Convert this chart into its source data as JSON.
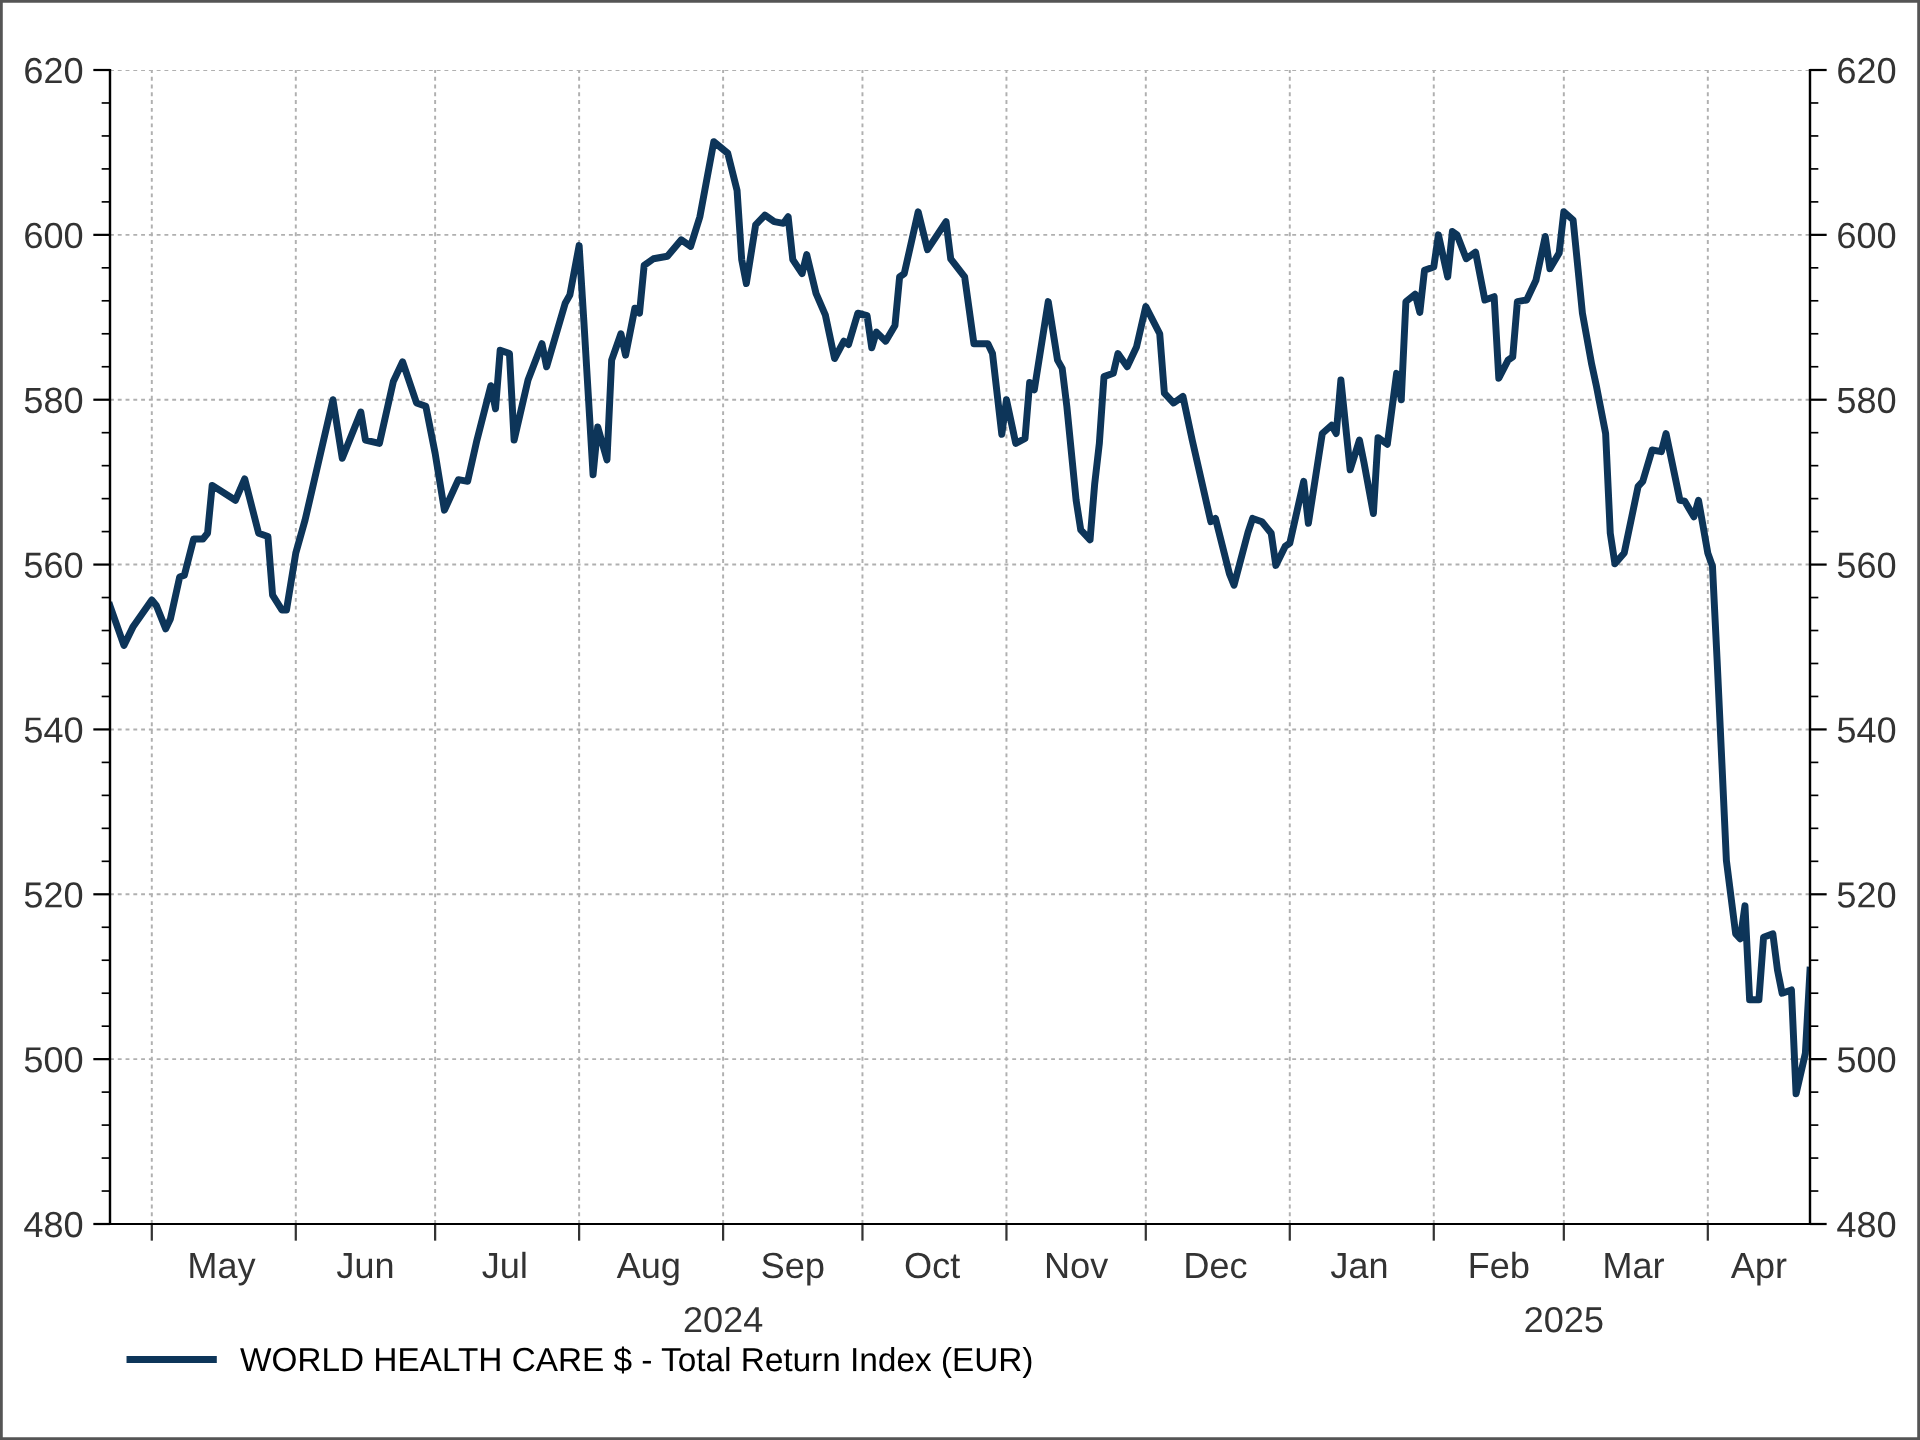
{
  "chart_data": {
    "type": "line",
    "xlim": [
      "2024-04-22",
      "2025-04-23"
    ],
    "xticks": [
      {
        "value": "2024-05-01",
        "label": null
      },
      {
        "value": "2024-05-16",
        "label": "May"
      },
      {
        "value": "2024-06-01",
        "label": null
      },
      {
        "value": "2024-06-16",
        "label": "Jun"
      },
      {
        "value": "2024-07-01",
        "label": null
      },
      {
        "value": "2024-07-16",
        "label": "Jul"
      },
      {
        "value": "2024-08-01",
        "label": null
      },
      {
        "value": "2024-08-16",
        "label": "Aug"
      },
      {
        "value": "2024-09-01",
        "label": null
      },
      {
        "value": "2024-09-16",
        "label": "Sep"
      },
      {
        "value": "2024-10-01",
        "label": null
      },
      {
        "value": "2024-10-16",
        "label": "Oct"
      },
      {
        "value": "2024-11-01",
        "label": null
      },
      {
        "value": "2024-11-16",
        "label": "Nov"
      },
      {
        "value": "2024-12-01",
        "label": null
      },
      {
        "value": "2024-12-16",
        "label": "Dec"
      },
      {
        "value": "2025-01-01",
        "label": null
      },
      {
        "value": "2025-01-16",
        "label": "Jan"
      },
      {
        "value": "2025-02-01",
        "label": null
      },
      {
        "value": "2025-02-15",
        "label": "Feb"
      },
      {
        "value": "2025-03-01",
        "label": null
      },
      {
        "value": "2025-03-16",
        "label": "Mar"
      },
      {
        "value": "2025-04-01",
        "label": null
      },
      {
        "value": "2025-04-12",
        "label": "Apr"
      }
    ],
    "x2lim": [
      "2024-04-22",
      "2025-04-23"
    ],
    "x2ticks": [
      {
        "value": "2024-09-01",
        "label": "2024"
      },
      {
        "value": "2025-03-01",
        "label": "2025"
      }
    ],
    "ylim": [
      480,
      620
    ],
    "yticks": [
      480,
      {
        "value": 484,
        "label": null
      },
      {
        "value": 488,
        "label": null
      },
      {
        "value": 492,
        "label": null
      },
      {
        "value": 496,
        "label": null
      },
      500,
      {
        "value": 504,
        "label": null
      },
      {
        "value": 508,
        "label": null
      },
      {
        "value": 512,
        "label": null
      },
      {
        "value": 516,
        "label": null
      },
      520,
      {
        "value": 524,
        "label": null
      },
      {
        "value": 528,
        "label": null
      },
      {
        "value": 532,
        "label": null
      },
      {
        "value": 536,
        "label": null
      },
      540,
      {
        "value": 544,
        "label": null
      },
      {
        "value": 548,
        "label": null
      },
      {
        "value": 552,
        "label": null
      },
      {
        "value": 556,
        "label": null
      },
      560,
      {
        "value": 564,
        "label": null
      },
      {
        "value": 568,
        "label": null
      },
      {
        "value": 572,
        "label": null
      },
      {
        "value": 576,
        "label": null
      },
      580,
      {
        "value": 584,
        "label": null
      },
      {
        "value": 588,
        "label": null
      },
      {
        "value": 592,
        "label": null
      },
      {
        "value": 596,
        "label": null
      },
      600,
      {
        "value": 604,
        "label": null
      },
      {
        "value": 608,
        "label": null
      },
      {
        "value": 612,
        "label": null
      },
      {
        "value": 616,
        "label": null
      },
      620
    ],
    "y2lim": [
      480,
      620
    ],
    "y2ticks": [
      480,
      {
        "value": 484,
        "label": null
      },
      {
        "value": 488,
        "label": null
      },
      {
        "value": 492,
        "label": null
      },
      {
        "value": 496,
        "label": null
      },
      500,
      {
        "value": 504,
        "label": null
      },
      {
        "value": 508,
        "label": null
      },
      {
        "value": 512,
        "label": null
      },
      {
        "value": 516,
        "label": null
      },
      520,
      {
        "value": 524,
        "label": null
      },
      {
        "value": 528,
        "label": null
      },
      {
        "value": 532,
        "label": null
      },
      {
        "value": 536,
        "label": null
      },
      540,
      {
        "value": 544,
        "label": null
      },
      {
        "value": 548,
        "label": null
      },
      {
        "value": 552,
        "label": null
      },
      {
        "value": 556,
        "label": null
      },
      560,
      {
        "value": 564,
        "label": null
      },
      {
        "value": 568,
        "label": null
      },
      {
        "value": 572,
        "label": null
      },
      {
        "value": 576,
        "label": null
      },
      580,
      {
        "value": 584,
        "label": null
      },
      {
        "value": 588,
        "label": null
      },
      {
        "value": 592,
        "label": null
      },
      {
        "value": 596,
        "label": null
      },
      600,
      {
        "value": 604,
        "label": null
      },
      {
        "value": 608,
        "label": null
      },
      {
        "value": 612,
        "label": null
      },
      {
        "value": 616,
        "label": null
      },
      620
    ],
    "grid": true,
    "legend": "bottom left",
    "line_style": "solid",
    "marker": "none",
    "series": [
      {
        "name": "WORLD HEALTH CARE $ - Total Return Index (EUR)",
        "color": "#0d3559",
        "x": [
          "2024-04-22",
          "2024-04-25",
          "2024-04-27",
          "2024-05-01",
          "2024-05-02",
          "2024-05-04",
          "2024-05-05",
          "2024-05-07",
          "2024-05-08",
          "2024-05-10",
          "2024-05-12",
          "2024-05-13",
          "2024-05-14",
          "2024-05-19",
          "2024-05-21",
          "2024-05-24",
          "2024-05-26",
          "2024-05-27",
          "2024-05-29",
          "2024-05-30",
          "2024-06-01",
          "2024-06-03",
          "2024-06-09",
          "2024-06-11",
          "2024-06-15",
          "2024-06-16",
          "2024-06-19",
          "2024-06-22",
          "2024-06-24",
          "2024-06-27",
          "2024-06-29",
          "2024-07-01",
          "2024-07-03",
          "2024-07-06",
          "2024-07-08",
          "2024-07-10",
          "2024-07-13",
          "2024-07-14",
          "2024-07-15",
          "2024-07-17",
          "2024-07-18",
          "2024-07-21",
          "2024-07-24",
          "2024-07-25",
          "2024-07-29",
          "2024-07-30",
          "2024-08-01",
          "2024-08-02",
          "2024-08-04",
          "2024-08-05",
          "2024-08-07",
          "2024-08-08",
          "2024-08-10",
          "2024-08-11",
          "2024-08-13",
          "2024-08-14",
          "2024-08-15",
          "2024-08-17",
          "2024-08-20",
          "2024-08-23",
          "2024-08-25",
          "2024-08-27",
          "2024-08-30",
          "2024-09-02",
          "2024-09-04",
          "2024-09-05",
          "2024-09-06",
          "2024-09-08",
          "2024-09-10",
          "2024-09-12",
          "2024-09-14",
          "2024-09-15",
          "2024-09-16",
          "2024-09-18",
          "2024-09-19",
          "2024-09-21",
          "2024-09-23",
          "2024-09-25",
          "2024-09-27",
          "2024-09-28",
          "2024-09-30",
          "2024-10-02",
          "2024-10-03",
          "2024-10-04",
          "2024-10-06",
          "2024-10-08",
          "2024-10-09",
          "2024-10-10",
          "2024-10-13",
          "2024-10-15",
          "2024-10-19",
          "2024-10-20",
          "2024-10-23",
          "2024-10-25",
          "2024-10-28",
          "2024-10-29",
          "2024-10-31",
          "2024-11-01",
          "2024-11-03",
          "2024-11-05",
          "2024-11-06",
          "2024-11-07",
          "2024-11-10",
          "2024-11-12",
          "2024-11-13",
          "2024-11-14",
          "2024-11-16",
          "2024-11-17",
          "2024-11-19",
          "2024-11-20",
          "2024-11-21",
          "2024-11-22",
          "2024-11-24",
          "2024-11-25",
          "2024-11-27",
          "2024-11-29",
          "2024-12-01",
          "2024-12-04",
          "2024-12-05",
          "2024-12-07",
          "2024-12-09",
          "2024-12-11",
          "2024-12-15",
          "2024-12-16",
          "2024-12-19",
          "2024-12-20",
          "2024-12-23",
          "2024-12-24",
          "2024-12-26",
          "2024-12-28",
          "2024-12-29",
          "2024-12-31",
          "2025-01-01",
          "2025-01-04",
          "2025-01-05",
          "2025-01-08",
          "2025-01-10",
          "2025-01-11",
          "2025-01-12",
          "2025-01-14",
          "2025-01-16",
          "2025-01-17",
          "2025-01-19",
          "2025-01-20",
          "2025-01-22",
          "2025-01-24",
          "2025-01-25",
          "2025-01-26",
          "2025-01-28",
          "2025-01-29",
          "2025-01-30",
          "2025-02-01",
          "2025-02-02",
          "2025-02-04",
          "2025-02-05",
          "2025-02-06",
          "2025-02-08",
          "2025-02-10",
          "2025-02-12",
          "2025-02-14",
          "2025-02-15",
          "2025-02-17",
          "2025-02-18",
          "2025-02-19",
          "2025-02-21",
          "2025-02-23",
          "2025-02-25",
          "2025-02-26",
          "2025-02-28",
          "2025-03-01",
          "2025-03-03",
          "2025-03-05",
          "2025-03-07",
          "2025-03-08",
          "2025-03-10",
          "2025-03-11",
          "2025-03-12",
          "2025-03-14",
          "2025-03-17",
          "2025-03-18",
          "2025-03-20",
          "2025-03-22",
          "2025-03-23",
          "2025-03-26",
          "2025-03-27",
          "2025-03-29",
          "2025-03-30",
          "2025-04-01",
          "2025-04-02",
          "2025-04-03",
          "2025-04-04",
          "2025-04-05",
          "2025-04-07",
          "2025-04-08",
          "2025-04-09",
          "2025-04-10",
          "2025-04-12",
          "2025-04-13",
          "2025-04-15",
          "2025-04-16",
          "2025-04-17",
          "2025-04-19",
          "2025-04-20",
          "2025-04-22",
          "2025-04-23"
        ],
        "values": [
          555.0,
          550.2,
          552.5,
          555.7,
          555.0,
          552.2,
          553.4,
          558.5,
          558.7,
          563.1,
          563.1,
          563.8,
          569.6,
          567.8,
          570.4,
          563.8,
          563.4,
          556.3,
          554.5,
          554.5,
          561.4,
          565.4,
          580.0,
          572.9,
          578.5,
          575.1,
          574.7,
          582.2,
          584.6,
          579.6,
          579.2,
          573.5,
          566.6,
          570.3,
          570.1,
          575.1,
          581.7,
          578.9,
          586.0,
          585.6,
          575.1,
          582.4,
          586.8,
          584.0,
          591.7,
          592.7,
          598.7,
          589.7,
          570.9,
          576.7,
          572.7,
          584.8,
          588.0,
          585.4,
          591.1,
          590.5,
          596.3,
          597.1,
          597.4,
          599.4,
          598.6,
          602.2,
          611.3,
          609.9,
          605.4,
          597.0,
          594.1,
          601.2,
          602.4,
          601.6,
          601.4,
          602.2,
          597.0,
          595.3,
          597.6,
          592.9,
          590.3,
          585.0,
          587.1,
          586.7,
          590.5,
          590.2,
          586.3,
          588.2,
          587.1,
          589.0,
          594.9,
          595.3,
          602.8,
          598.2,
          601.6,
          597.1,
          594.9,
          586.8,
          586.8,
          585.6,
          575.8,
          580.0,
          574.7,
          575.3,
          582.1,
          581.2,
          591.9,
          584.8,
          583.8,
          579.2,
          567.8,
          564.2,
          563.0,
          569.8,
          574.7,
          582.8,
          583.2,
          585.6,
          584.0,
          586.4,
          591.3,
          588.0,
          580.8,
          579.6,
          580.4,
          575.1,
          565.2,
          565.6,
          558.9,
          557.5,
          563.9,
          565.6,
          565.2,
          563.8,
          559.9,
          562.2,
          562.6,
          570.1,
          565.0,
          575.9,
          576.9,
          575.9,
          582.4,
          571.5,
          575.1,
          572.3,
          566.2,
          575.4,
          574.6,
          583.2,
          580.0,
          591.9,
          592.8,
          590.6,
          595.7,
          596.1,
          600.0,
          594.9,
          600.4,
          600.0,
          597.1,
          597.9,
          592.1,
          592.5,
          582.6,
          584.8,
          585.2,
          591.9,
          592.1,
          594.5,
          599.8,
          595.9,
          597.8,
          602.8,
          601.8,
          590.5,
          584.3,
          581.7,
          575.9,
          563.8,
          560.1,
          561.4,
          569.5,
          570.1,
          573.9,
          573.7,
          575.9,
          567.8,
          567.7,
          565.8,
          567.8,
          561.4,
          559.8,
          548.4,
          536.3,
          524.1,
          515.2,
          514.6,
          518.6,
          507.2,
          507.2,
          514.8,
          515.2,
          510.8,
          508.0,
          508.4,
          495.8,
          500.7,
          510.8
        ]
      }
    ]
  }
}
